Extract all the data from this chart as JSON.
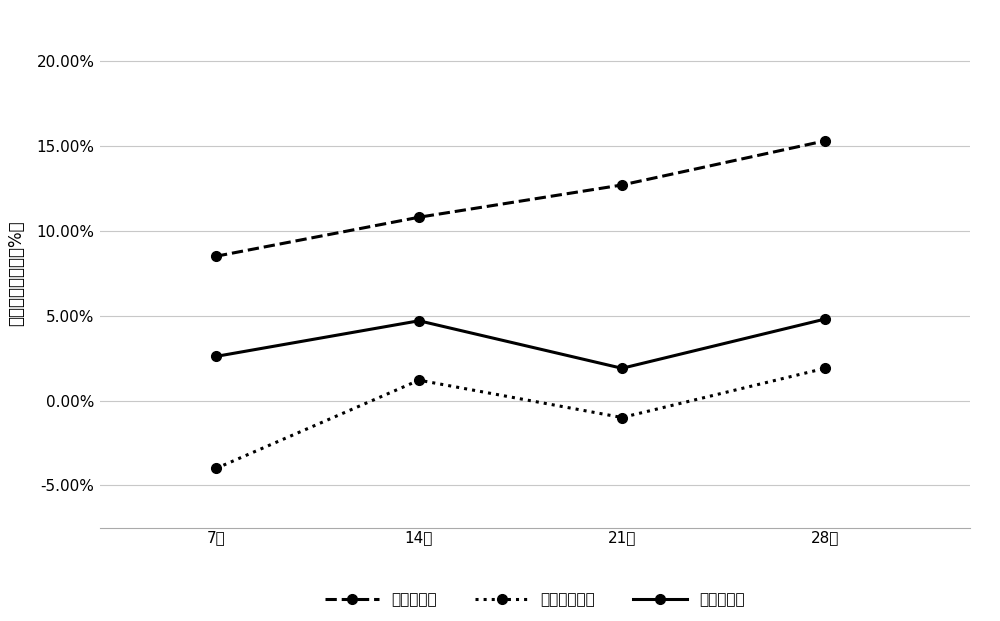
{
  "x_labels": [
    "7天",
    "14天",
    "21天",
    "28天"
  ],
  "x_values": [
    7,
    14,
    21,
    28
  ],
  "series": [
    {
      "name": "皂基型洁面",
      "values": [
        0.085,
        0.108,
        0.127,
        0.153
      ],
      "linestyle": "--",
      "marker": "o",
      "color": "#000000",
      "linewidth": 2.2,
      "markersize": 7
    },
    {
      "name": "氨基酸型洁面",
      "values": [
        -0.04,
        0.012,
        -0.01,
        0.019
      ],
      "linestyle": ":",
      "marker": "o",
      "color": "#000000",
      "linewidth": 2.2,
      "markersize": 7
    },
    {
      "name": "皂氨型洁面",
      "values": [
        0.026,
        0.047,
        0.019,
        0.048
      ],
      "linestyle": "-",
      "marker": "o",
      "color": "#000000",
      "linewidth": 2.2,
      "markersize": 7
    }
  ],
  "ylabel": "水分散失增加量（%）",
  "ylim": [
    -0.075,
    0.225
  ],
  "yticks": [
    -0.05,
    0.0,
    0.05,
    0.1,
    0.15,
    0.2
  ],
  "ytick_labels": [
    "-5.00%",
    "0.00%",
    "5.00%",
    "10.00%",
    "15.00%",
    "20.00%"
  ],
  "grid_color": "#c8c8c8",
  "background_color": "#ffffff",
  "ylabel_fontsize": 12,
  "tick_fontsize": 11,
  "legend_fontsize": 11,
  "xlim_left": 3,
  "xlim_right": 33
}
